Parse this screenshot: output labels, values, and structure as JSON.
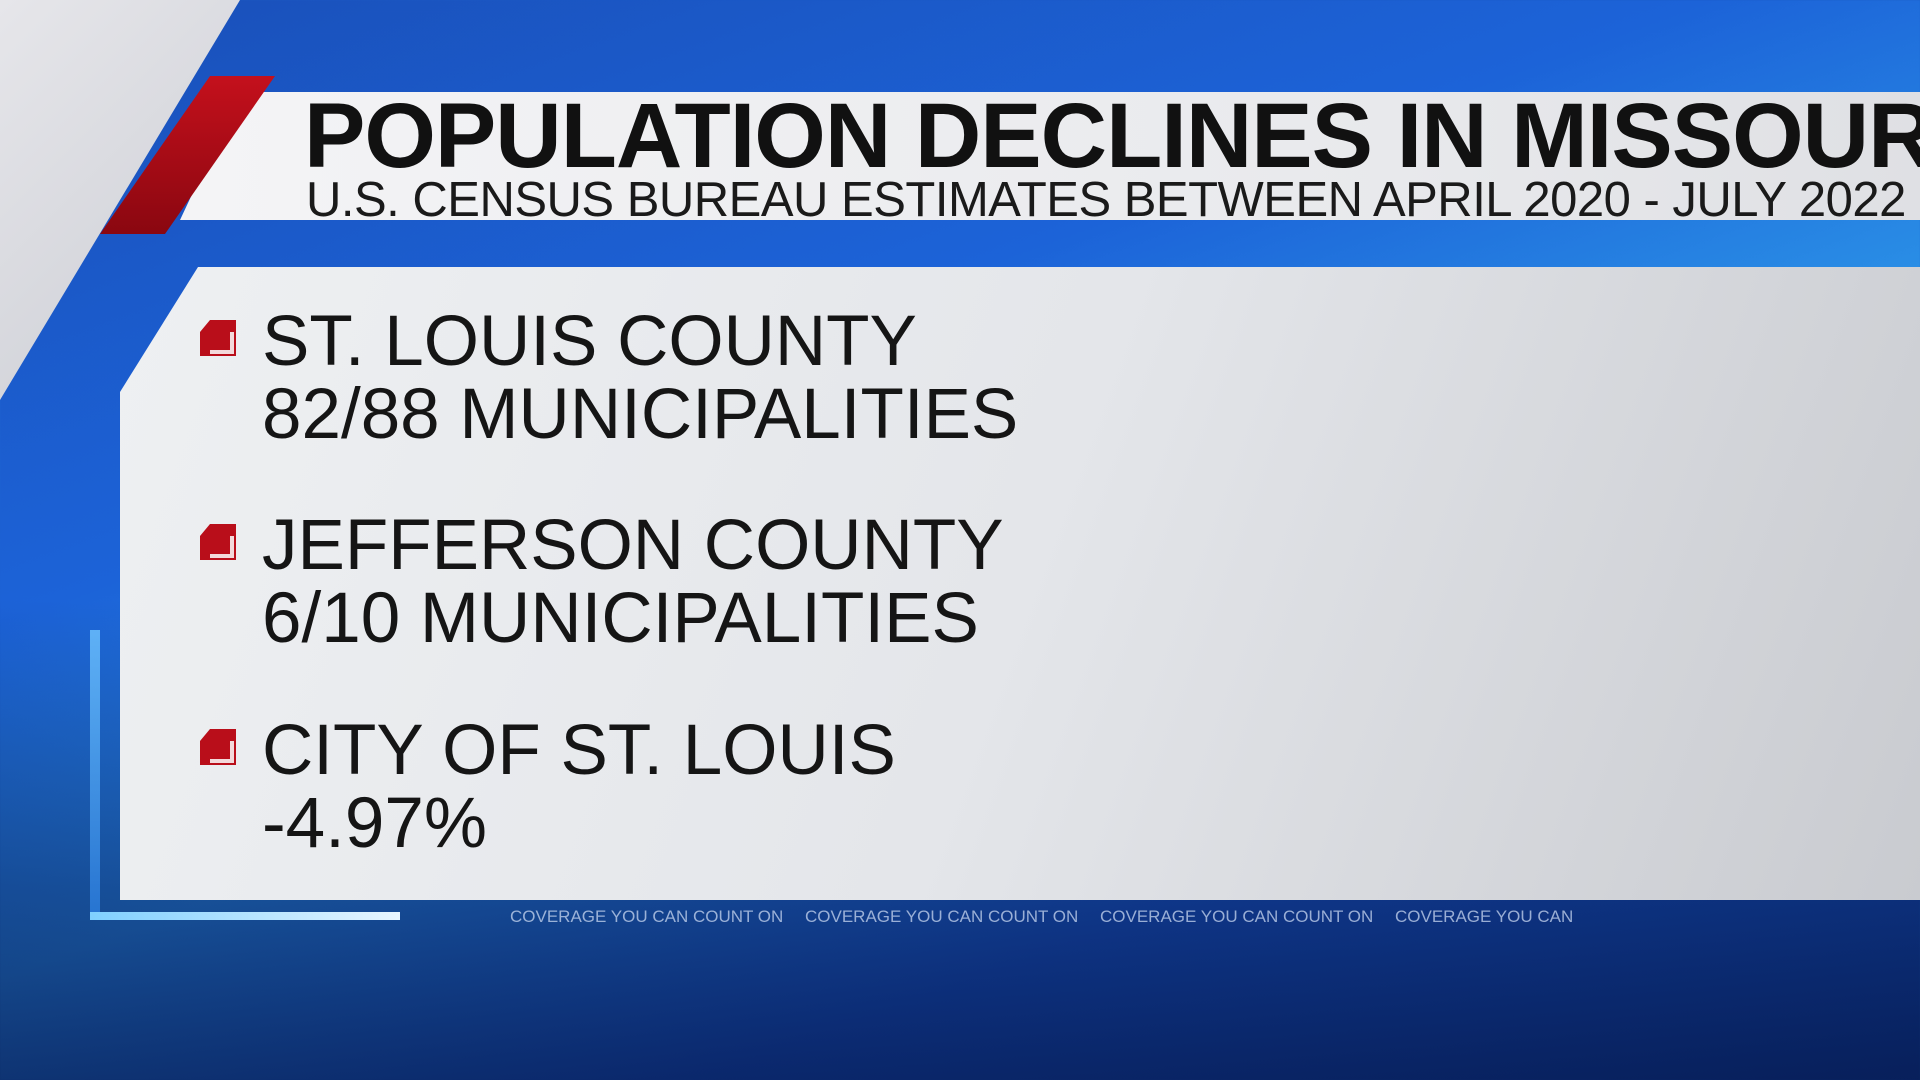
{
  "header": {
    "title": "POPULATION DECLINES IN MISSOURI",
    "subtitle": "U.S. CENSUS BUREAU ESTIMATES BETWEEN APRIL 2020 - JULY 2022"
  },
  "items": [
    {
      "name": "ST. LOUIS COUNTY",
      "value": "82/88 MUNICIPALITIES"
    },
    {
      "name": "JEFFERSON COUNTY",
      "value": "6/10 MUNICIPALITIES"
    },
    {
      "name": "CITY OF ST. LOUIS",
      "value": "-4.97%"
    }
  ],
  "ticker": [
    "COVERAGE YOU CAN COUNT ON",
    "COVERAGE YOU CAN COUNT ON",
    "COVERAGE YOU CAN COUNT ON",
    "COVERAGE YOU CAN"
  ],
  "colors": {
    "accent_red": "#b90e1a",
    "background_blue": "#1c63d8"
  }
}
